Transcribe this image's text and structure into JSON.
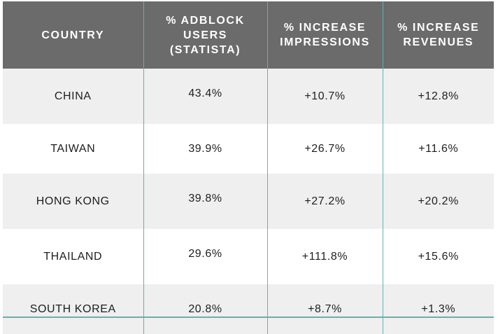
{
  "table": {
    "headers": {
      "country": "COUNTRY",
      "adblock": "% ADBLOCK USERS (STATISTA)",
      "impressions": "% INCREASE IMPRESSIONS",
      "revenues": "% INCREASE REVENUES"
    },
    "rows": [
      {
        "country": "CHINA",
        "adblock": "43.4%",
        "impressions": "+10.7%",
        "revenues": "+12.8%"
      },
      {
        "country": "TAIWAN",
        "adblock": "39.9%",
        "impressions": "+26.7%",
        "revenues": "+11.6%"
      },
      {
        "country": "HONG KONG",
        "adblock": "39.8%",
        "impressions": "+27.2%",
        "revenues": "+20.2%"
      },
      {
        "country": "THAILAND",
        "adblock": "29.6%",
        "impressions": "+111.8%",
        "revenues": "+15.6%"
      },
      {
        "country": "SOUTH KOREA",
        "adblock": "20.8%",
        "impressions": "+8.7%",
        "revenues": "+1.3%"
      }
    ]
  },
  "colors": {
    "header_bg": "#6b6b6b",
    "header_text": "#ffffff",
    "shaded_row": "#efefef",
    "divider": "#5fb3b3"
  }
}
